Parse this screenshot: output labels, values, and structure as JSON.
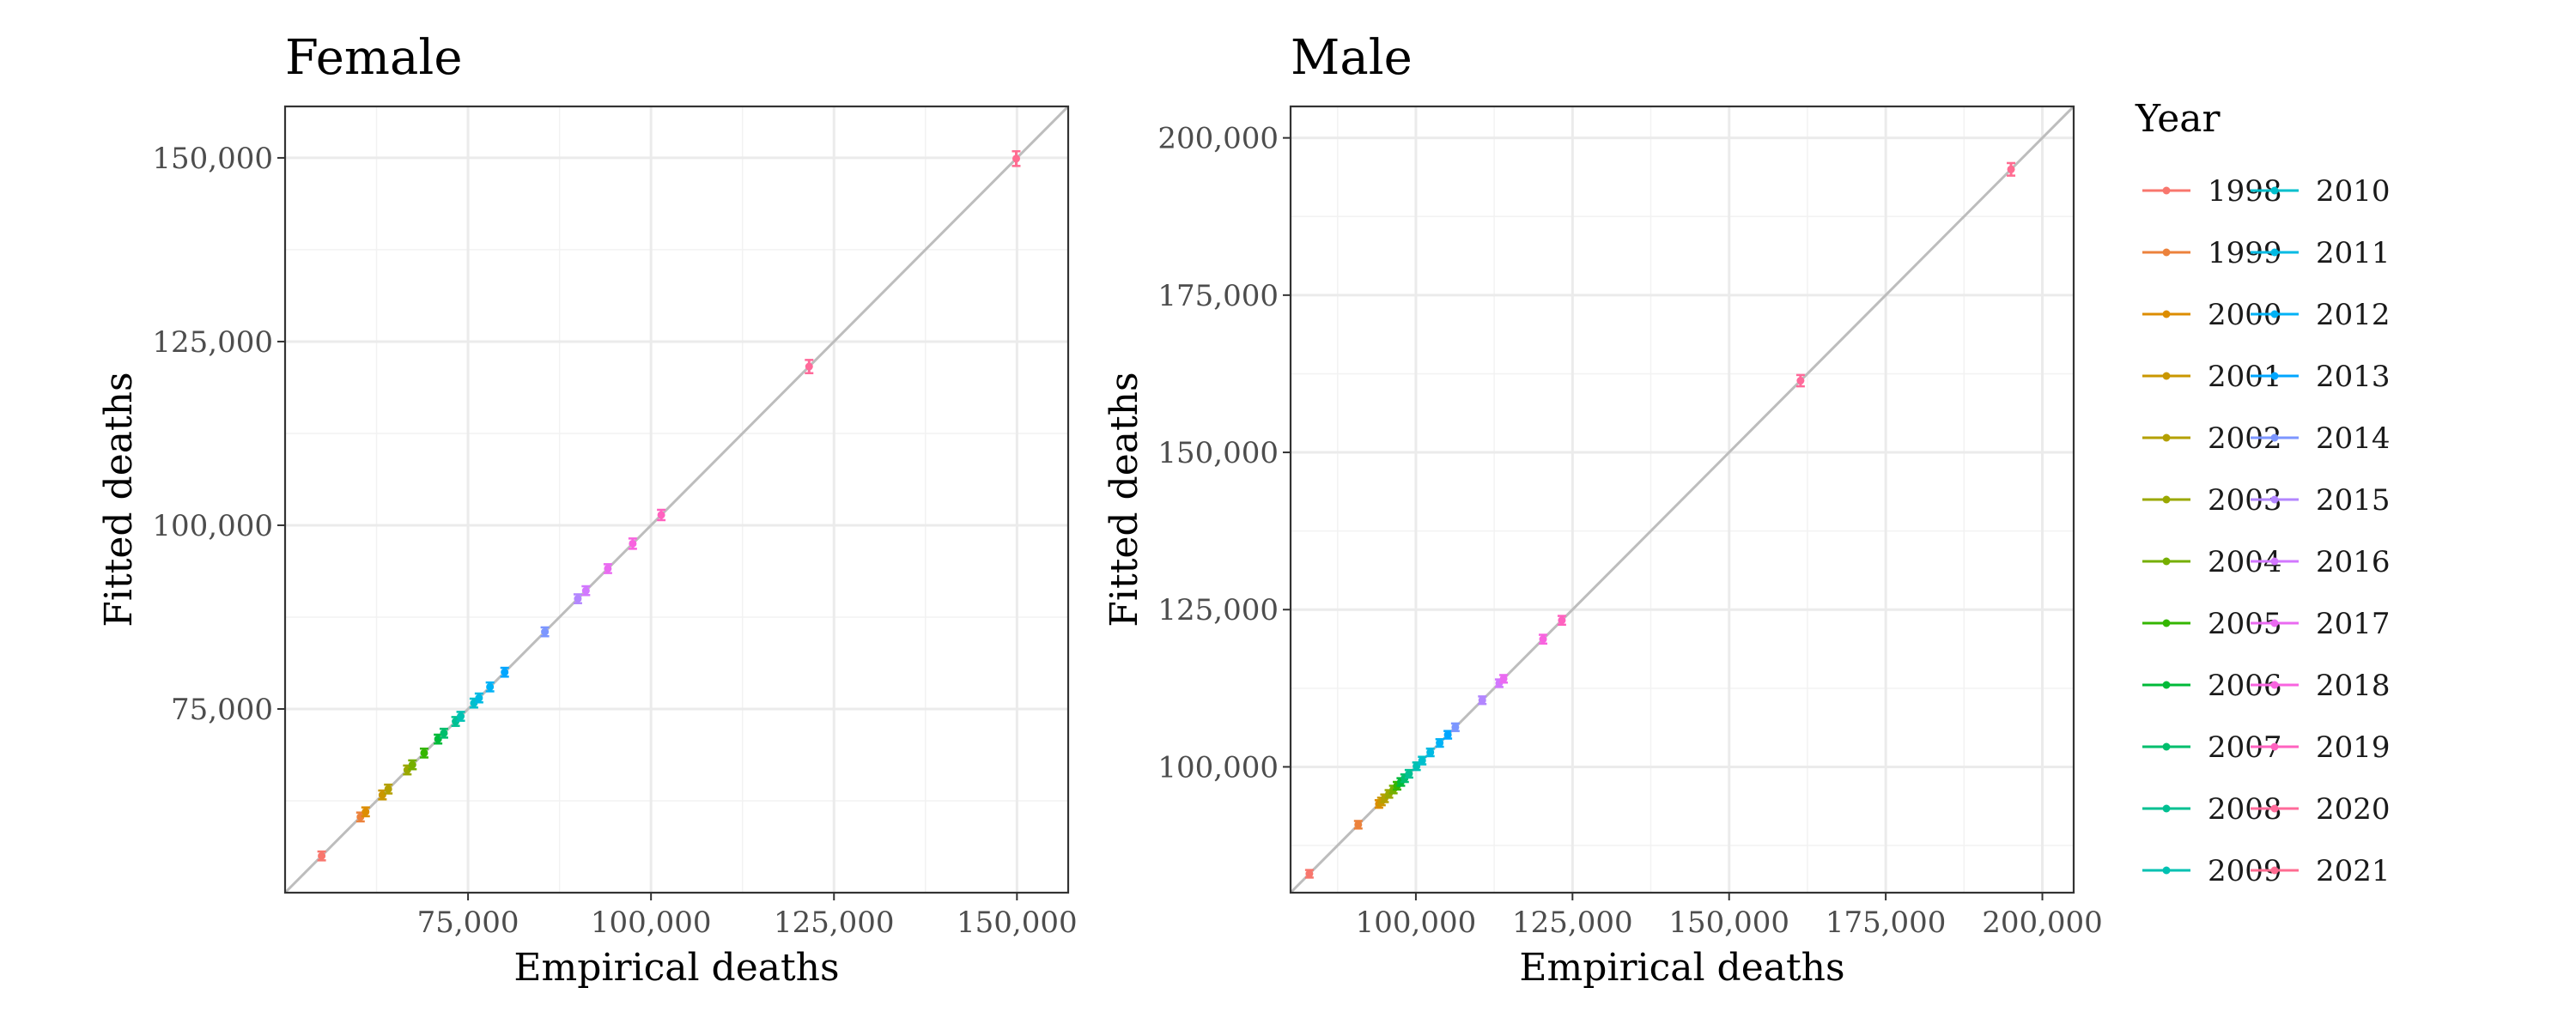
{
  "chart_data": {
    "type": "scatter",
    "legend": {
      "title": "Year",
      "placement": "right",
      "entries": [
        {
          "label": "1998",
          "color": "#F8766D"
        },
        {
          "label": "1999",
          "color": "#EC823C"
        },
        {
          "label": "2000",
          "color": "#DD8D00"
        },
        {
          "label": "2001",
          "color": "#CA9700"
        },
        {
          "label": "2002",
          "color": "#B4A000"
        },
        {
          "label": "2003",
          "color": "#9AA800"
        },
        {
          "label": "2004",
          "color": "#75AF00"
        },
        {
          "label": "2005",
          "color": "#34B600"
        },
        {
          "label": "2006",
          "color": "#00BA38"
        },
        {
          "label": "2007",
          "color": "#00BE6C"
        },
        {
          "label": "2008",
          "color": "#00C092"
        },
        {
          "label": "2009",
          "color": "#00C1B2"
        },
        {
          "label": "2010",
          "color": "#00BFCC"
        },
        {
          "label": "2011",
          "color": "#00BAE3"
        },
        {
          "label": "2012",
          "color": "#00B2F6"
        },
        {
          "label": "2013",
          "color": "#00A6FF"
        },
        {
          "label": "2014",
          "color": "#7C96FF"
        },
        {
          "label": "2015",
          "color": "#B386FF"
        },
        {
          "label": "2016",
          "color": "#D277FF"
        },
        {
          "label": "2017",
          "color": "#EA6AF1"
        },
        {
          "label": "2018",
          "color": "#F863DF"
        },
        {
          "label": "2019",
          "color": "#FF62BF"
        },
        {
          "label": "2020",
          "color": "#FF6A9A"
        },
        {
          "label": "2021",
          "color": "#FF6C91"
        }
      ]
    },
    "panels": [
      {
        "title": "Female",
        "xlabel": "Empirical deaths",
        "ylabel": "Fitted deaths",
        "xlim": [
          50000,
          157000
        ],
        "ylim": [
          50000,
          157000
        ],
        "xticks": [
          75000,
          100000,
          125000,
          150000
        ],
        "xtick_labels": [
          "75,000",
          "100,000",
          "125,000",
          "150,000"
        ],
        "yticks": [
          75000,
          100000,
          125000,
          150000
        ],
        "ytick_labels": [
          "75,000",
          "100,000",
          "125,000",
          "150,000"
        ],
        "grid": true,
        "identity_line": true,
        "points": [
          {
            "year": "1998",
            "x": 55000,
            "y": 55000,
            "lo": 54400,
            "hi": 55600
          },
          {
            "year": "1999",
            "x": 60300,
            "y": 60300,
            "lo": 59700,
            "hi": 60900
          },
          {
            "year": "2000",
            "x": 61000,
            "y": 61000,
            "lo": 60400,
            "hi": 61600
          },
          {
            "year": "2001",
            "x": 63300,
            "y": 63300,
            "lo": 62700,
            "hi": 63900
          },
          {
            "year": "2002",
            "x": 64100,
            "y": 64100,
            "lo": 63500,
            "hi": 64700
          },
          {
            "year": "2003",
            "x": 66700,
            "y": 66700,
            "lo": 66100,
            "hi": 67300
          },
          {
            "year": "2004",
            "x": 67400,
            "y": 67400,
            "lo": 66800,
            "hi": 68000
          },
          {
            "year": "2005",
            "x": 69000,
            "y": 69000,
            "lo": 68400,
            "hi": 69600
          },
          {
            "year": "2006",
            "x": 70900,
            "y": 70900,
            "lo": 70300,
            "hi": 71500
          },
          {
            "year": "2007",
            "x": 71700,
            "y": 71700,
            "lo": 71100,
            "hi": 72300
          },
          {
            "year": "2008",
            "x": 73300,
            "y": 73300,
            "lo": 72700,
            "hi": 73900
          },
          {
            "year": "2009",
            "x": 74000,
            "y": 74000,
            "lo": 73400,
            "hi": 74600
          },
          {
            "year": "2010",
            "x": 75800,
            "y": 75800,
            "lo": 75200,
            "hi": 76400
          },
          {
            "year": "2011",
            "x": 76500,
            "y": 76500,
            "lo": 75900,
            "hi": 77100
          },
          {
            "year": "2012",
            "x": 78000,
            "y": 78000,
            "lo": 77400,
            "hi": 78600
          },
          {
            "year": "2013",
            "x": 80000,
            "y": 80000,
            "lo": 79400,
            "hi": 80600
          },
          {
            "year": "2014",
            "x": 85500,
            "y": 85500,
            "lo": 84900,
            "hi": 86100
          },
          {
            "year": "2015",
            "x": 90000,
            "y": 90000,
            "lo": 89400,
            "hi": 90600
          },
          {
            "year": "2016",
            "x": 91100,
            "y": 91100,
            "lo": 90500,
            "hi": 91700
          },
          {
            "year": "2017",
            "x": 94100,
            "y": 94100,
            "lo": 93500,
            "hi": 94700
          },
          {
            "year": "2018",
            "x": 97500,
            "y": 97500,
            "lo": 96800,
            "hi": 98200
          },
          {
            "year": "2019",
            "x": 101400,
            "y": 101400,
            "lo": 100700,
            "hi": 102100
          },
          {
            "year": "2020",
            "x": 121600,
            "y": 121600,
            "lo": 120700,
            "hi": 122500
          },
          {
            "year": "2021",
            "x": 149900,
            "y": 149900,
            "lo": 148900,
            "hi": 150900
          }
        ]
      },
      {
        "title": "Male",
        "xlabel": "Empirical deaths",
        "ylabel": "Fitted deaths",
        "xlim": [
          80000,
          205000
        ],
        "ylim": [
          80000,
          205000
        ],
        "xticks": [
          100000,
          125000,
          150000,
          175000,
          200000
        ],
        "xtick_labels": [
          "100,000",
          "125,000",
          "150,000",
          "175,000",
          "200,000"
        ],
        "yticks": [
          100000,
          125000,
          150000,
          175000,
          200000
        ],
        "ytick_labels": [
          "100,000",
          "125,000",
          "150,000",
          "175,000",
          "200,000"
        ],
        "grid": true,
        "identity_line": true,
        "points": [
          {
            "year": "1998",
            "x": 83000,
            "y": 83000,
            "lo": 82400,
            "hi": 83600
          },
          {
            "year": "1999",
            "x": 90800,
            "y": 90800,
            "lo": 90200,
            "hi": 91400
          },
          {
            "year": "2000",
            "x": 94100,
            "y": 94100,
            "lo": 93500,
            "hi": 94700
          },
          {
            "year": "2001",
            "x": 94500,
            "y": 94500,
            "lo": 93900,
            "hi": 95100
          },
          {
            "year": "2002",
            "x": 95000,
            "y": 95000,
            "lo": 94400,
            "hi": 95600
          },
          {
            "year": "2003",
            "x": 95700,
            "y": 95700,
            "lo": 95100,
            "hi": 96300
          },
          {
            "year": "2004",
            "x": 96400,
            "y": 96400,
            "lo": 95800,
            "hi": 97000
          },
          {
            "year": "2005",
            "x": 97000,
            "y": 97000,
            "lo": 96400,
            "hi": 97600
          },
          {
            "year": "2006",
            "x": 97600,
            "y": 97600,
            "lo": 97000,
            "hi": 98200
          },
          {
            "year": "2007",
            "x": 98200,
            "y": 98200,
            "lo": 97600,
            "hi": 98800
          },
          {
            "year": "2008",
            "x": 98900,
            "y": 98900,
            "lo": 98300,
            "hi": 99500
          },
          {
            "year": "2009",
            "x": 100100,
            "y": 100100,
            "lo": 99500,
            "hi": 100700
          },
          {
            "year": "2010",
            "x": 101000,
            "y": 101000,
            "lo": 100400,
            "hi": 101600
          },
          {
            "year": "2011",
            "x": 102300,
            "y": 102300,
            "lo": 101700,
            "hi": 102900
          },
          {
            "year": "2012",
            "x": 103800,
            "y": 103800,
            "lo": 103200,
            "hi": 104400
          },
          {
            "year": "2013",
            "x": 105100,
            "y": 105100,
            "lo": 104500,
            "hi": 105700
          },
          {
            "year": "2014",
            "x": 106300,
            "y": 106300,
            "lo": 105700,
            "hi": 106900
          },
          {
            "year": "2015",
            "x": 110600,
            "y": 110600,
            "lo": 110000,
            "hi": 111200
          },
          {
            "year": "2016",
            "x": 113300,
            "y": 113300,
            "lo": 112700,
            "hi": 113900
          },
          {
            "year": "2017",
            "x": 114000,
            "y": 114000,
            "lo": 113400,
            "hi": 114600
          },
          {
            "year": "2018",
            "x": 120300,
            "y": 120300,
            "lo": 119600,
            "hi": 121000
          },
          {
            "year": "2019",
            "x": 123300,
            "y": 123300,
            "lo": 122600,
            "hi": 124000
          },
          {
            "year": "2020",
            "x": 161400,
            "y": 161400,
            "lo": 160500,
            "hi": 162300
          },
          {
            "year": "2021",
            "x": 195000,
            "y": 195000,
            "lo": 194000,
            "hi": 196000
          }
        ]
      }
    ]
  }
}
